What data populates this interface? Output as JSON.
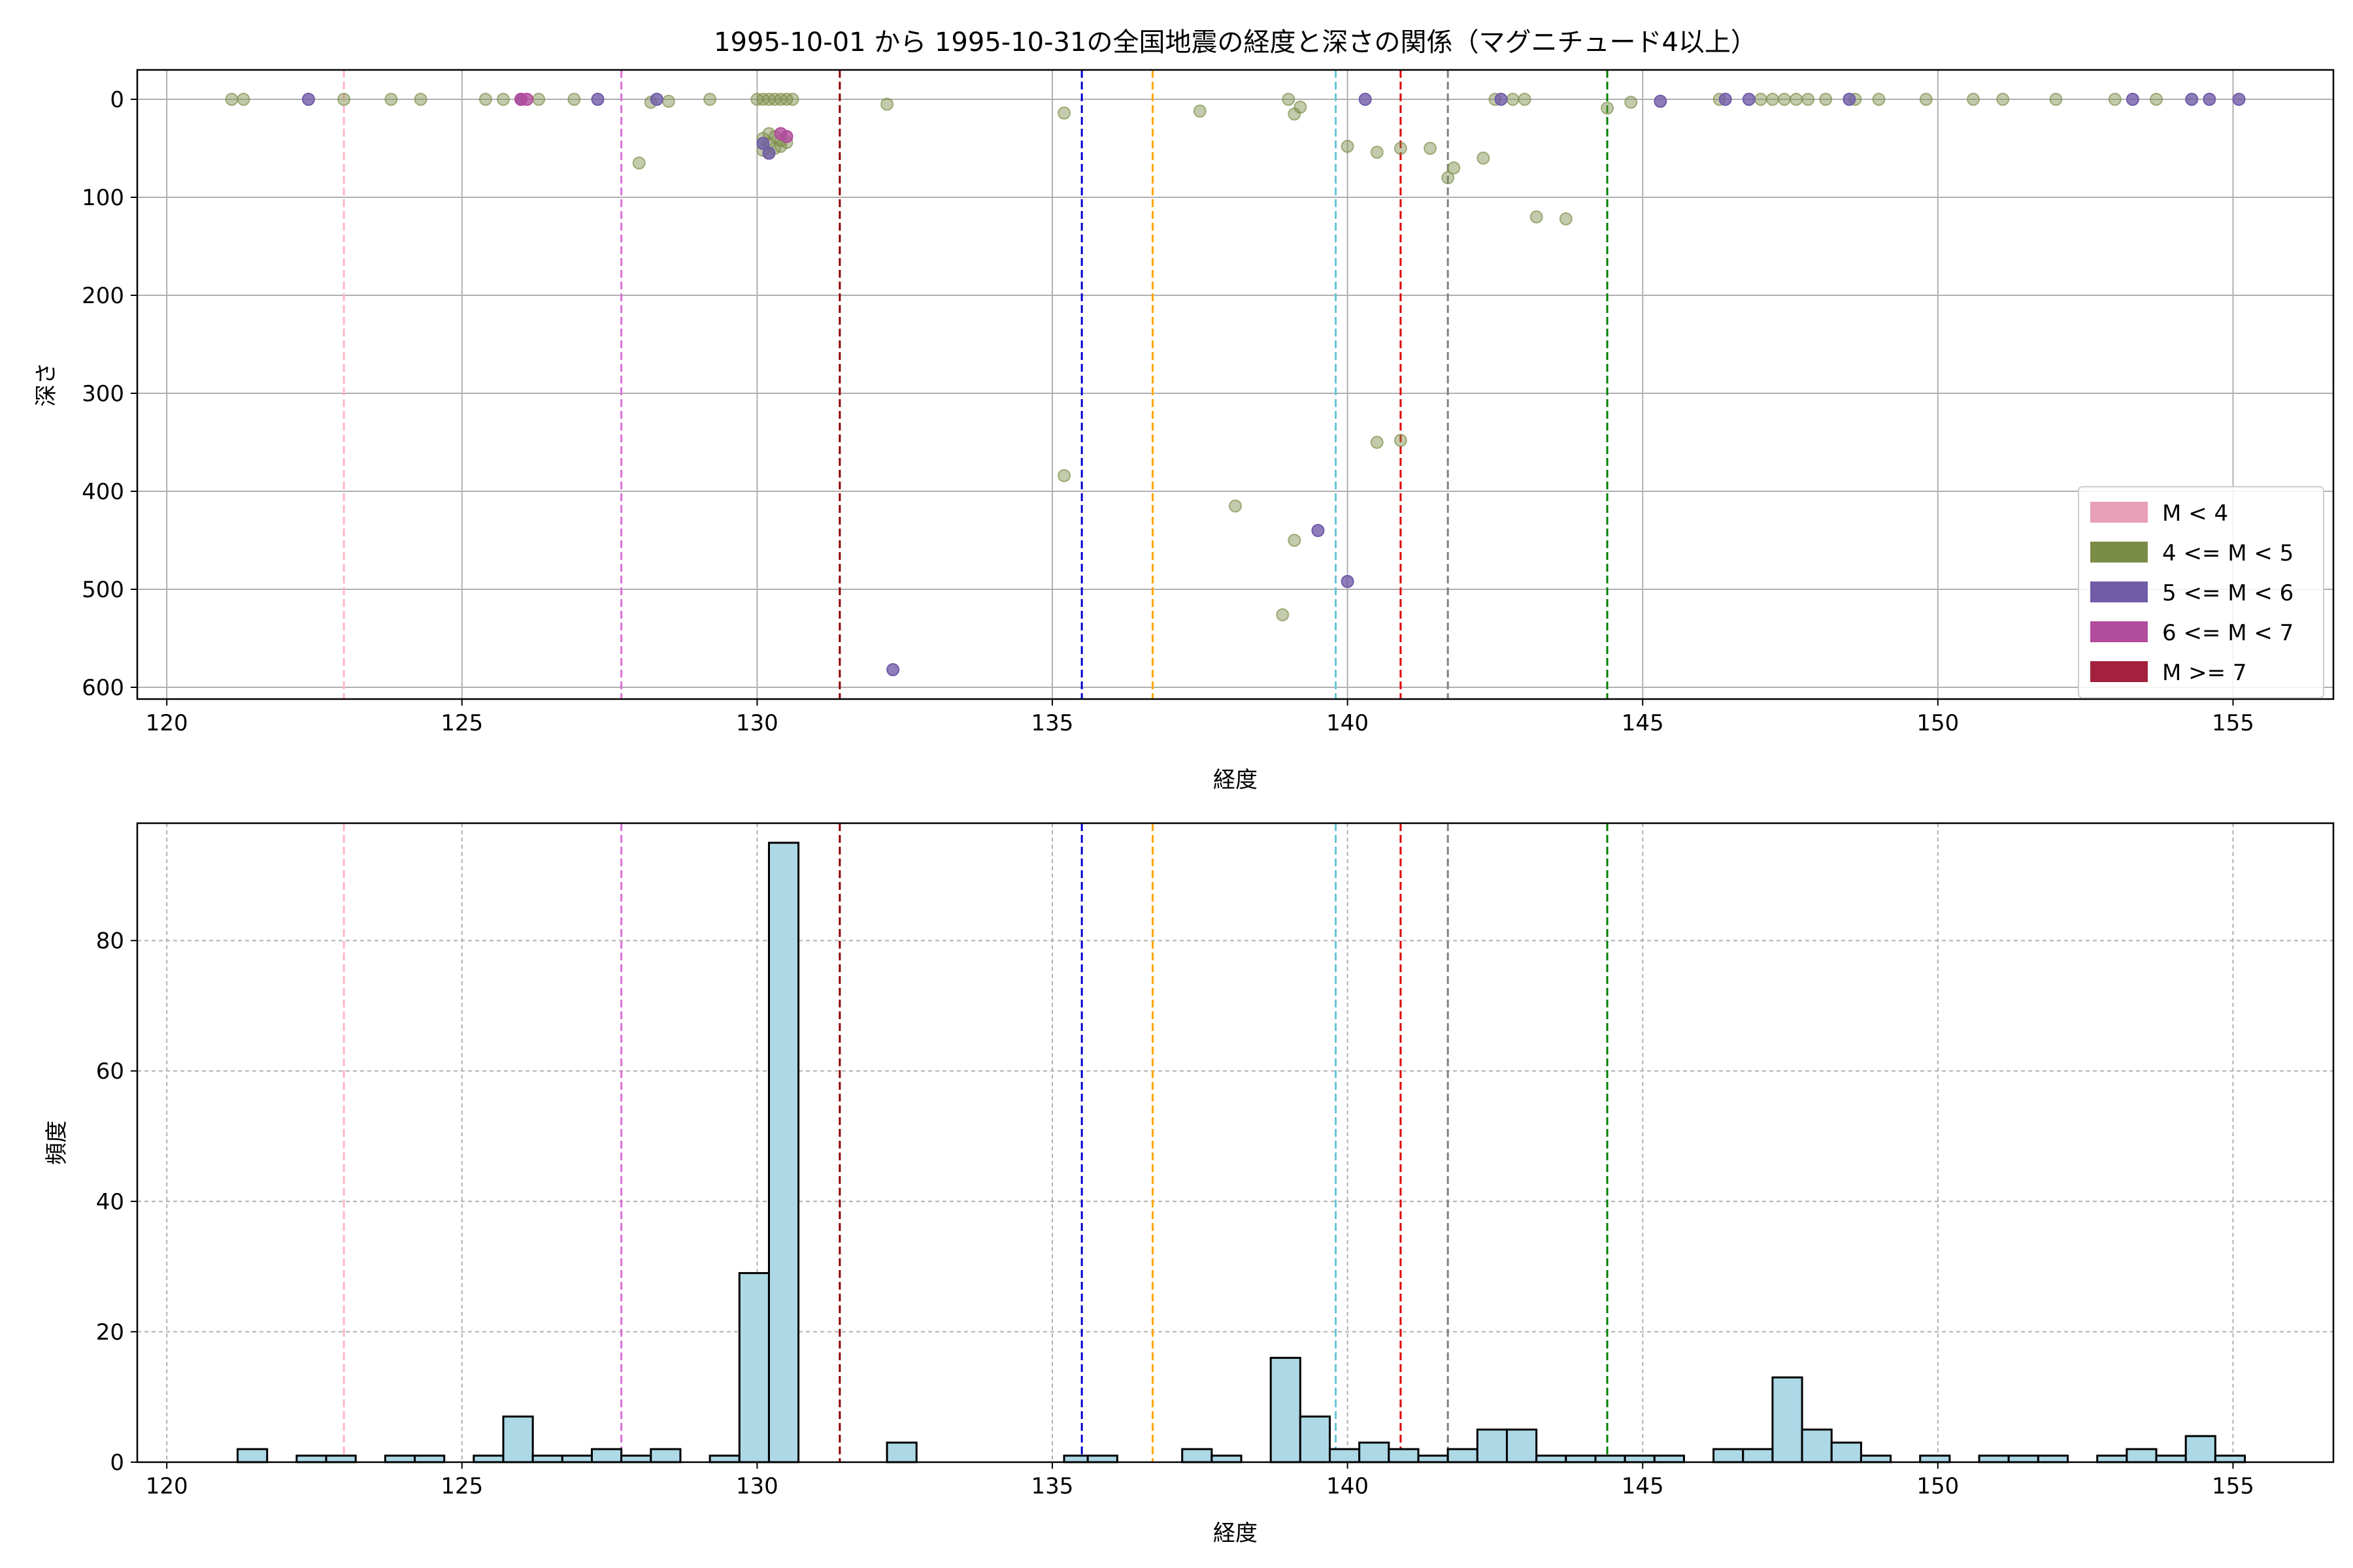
{
  "chart_data": [
    {
      "type": "scatter",
      "title": "1995-10-01 から 1995-10-31の全国地震の経度と深さの関係（マグニチュード4以上）",
      "xlabel": "経度",
      "ylabel": "深さ",
      "xlim": [
        119.5,
        156.7
      ],
      "ylim": [
        612,
        -30
      ],
      "y_inverted": true,
      "x_ticks": [
        120,
        125,
        130,
        135,
        140,
        145,
        150,
        155
      ],
      "y_ticks": [
        0,
        100,
        200,
        300,
        400,
        500,
        600
      ],
      "grid": true,
      "legend_position": "lower-right",
      "legend": [
        {
          "label": "M < 4",
          "color": "#e8a0b8"
        },
        {
          "label": "4 <= M < 5",
          "color": "#7b8c46"
        },
        {
          "label": "5 <= M < 6",
          "color": "#715ca8"
        },
        {
          "label": "6 <= M < 7",
          "color": "#b24c9c"
        },
        {
          "label": "M >= 7",
          "color": "#a3213d"
        }
      ],
      "reference_lines": [
        {
          "x": 123.0,
          "color": "#ffb6c1"
        },
        {
          "x": 127.7,
          "color": "#da70d6"
        },
        {
          "x": 131.4,
          "color": "#8b0000"
        },
        {
          "x": 135.5,
          "color": "#0000cd"
        },
        {
          "x": 136.7,
          "color": "#ffa500"
        },
        {
          "x": 139.8,
          "color": "#66c6d6"
        },
        {
          "x": 140.9,
          "color": "#dd0000"
        },
        {
          "x": 141.7,
          "color": "#808080"
        },
        {
          "x": 144.4,
          "color": "#007f00"
        }
      ],
      "series": [
        {
          "category": "4 <= M < 5",
          "color": "#7b8c46",
          "points": [
            [
              121.1,
              0
            ],
            [
              121.3,
              0
            ],
            [
              123.0,
              0
            ],
            [
              123.8,
              0
            ],
            [
              124.3,
              0
            ],
            [
              125.4,
              0
            ],
            [
              125.7,
              0
            ],
            [
              126.3,
              0
            ],
            [
              126.9,
              0
            ],
            [
              128.2,
              3
            ],
            [
              128.5,
              2
            ],
            [
              128.0,
              65
            ],
            [
              129.2,
              0
            ],
            [
              130.0,
              0
            ],
            [
              130.1,
              0
            ],
            [
              130.2,
              0
            ],
            [
              130.3,
              0
            ],
            [
              130.4,
              0
            ],
            [
              130.5,
              0
            ],
            [
              130.6,
              0
            ],
            [
              130.1,
              40
            ],
            [
              130.2,
              45
            ],
            [
              130.3,
              50
            ],
            [
              130.4,
              42
            ],
            [
              130.2,
              55
            ],
            [
              130.3,
              38
            ],
            [
              130.5,
              44
            ],
            [
              130.1,
              52
            ],
            [
              130.4,
              48
            ],
            [
              130.2,
              35
            ],
            [
              132.2,
              5
            ],
            [
              135.2,
              14
            ],
            [
              135.2,
              384
            ],
            [
              137.5,
              12
            ],
            [
              138.1,
              415
            ],
            [
              138.9,
              526
            ],
            [
              139.0,
              0
            ],
            [
              139.1,
              15
            ],
            [
              139.2,
              8
            ],
            [
              139.1,
              450
            ],
            [
              140.0,
              48
            ],
            [
              140.5,
              54
            ],
            [
              140.9,
              50
            ],
            [
              141.4,
              50
            ],
            [
              141.7,
              80
            ],
            [
              141.8,
              70
            ],
            [
              142.3,
              60
            ],
            [
              142.5,
              0
            ],
            [
              142.8,
              0
            ],
            [
              143.0,
              0
            ],
            [
              143.2,
              120
            ],
            [
              143.7,
              122
            ],
            [
              144.4,
              9
            ],
            [
              144.8,
              3
            ],
            [
              140.5,
              350
            ],
            [
              140.9,
              348
            ],
            [
              146.3,
              0
            ],
            [
              147.0,
              0
            ],
            [
              147.2,
              0
            ],
            [
              147.4,
              0
            ],
            [
              147.6,
              0
            ],
            [
              147.8,
              0
            ],
            [
              148.1,
              0
            ],
            [
              148.6,
              0
            ],
            [
              149.0,
              0
            ],
            [
              149.8,
              0
            ],
            [
              150.6,
              0
            ],
            [
              151.1,
              0
            ],
            [
              152.0,
              0
            ],
            [
              153.0,
              0
            ],
            [
              153.7,
              0
            ]
          ]
        },
        {
          "category": "5 <= M < 6",
          "color": "#715ca8",
          "points": [
            [
              122.4,
              0
            ],
            [
              126.0,
              0
            ],
            [
              127.3,
              0
            ],
            [
              128.3,
              0
            ],
            [
              130.1,
              45
            ],
            [
              130.2,
              55
            ],
            [
              132.3,
              582
            ],
            [
              139.5,
              440
            ],
            [
              140.0,
              492
            ],
            [
              140.3,
              0
            ],
            [
              142.6,
              0
            ],
            [
              145.3,
              2
            ],
            [
              146.4,
              0
            ],
            [
              146.8,
              0
            ],
            [
              148.5,
              0
            ],
            [
              153.3,
              0
            ],
            [
              154.3,
              0
            ],
            [
              154.6,
              0
            ],
            [
              155.1,
              0
            ]
          ]
        },
        {
          "category": "6 <= M < 7",
          "color": "#b24c9c",
          "points": [
            [
              126.0,
              0
            ],
            [
              126.1,
              0
            ],
            [
              130.4,
              35
            ],
            [
              130.5,
              38
            ]
          ]
        }
      ]
    },
    {
      "type": "bar",
      "histogram": true,
      "xlabel": "経度",
      "ylabel": "頻度",
      "xlim": [
        119.5,
        156.7
      ],
      "ylim": [
        0,
        98
      ],
      "x_ticks": [
        120,
        125,
        130,
        135,
        140,
        145,
        150,
        155
      ],
      "y_ticks": [
        0,
        20,
        40,
        60,
        80
      ],
      "grid": "dashed",
      "bar_color": "#add8e6",
      "bin_width": 0.5,
      "bins_start": [
        121.2,
        122.2,
        122.7,
        123.7,
        124.2,
        125.2,
        125.7,
        126.2,
        126.7,
        127.2,
        127.7,
        128.2,
        129.2,
        129.7,
        130.2,
        132.2,
        135.2,
        135.6,
        137.2,
        137.7,
        138.7,
        139.2,
        139.7,
        140.2,
        140.7,
        141.2,
        141.7,
        142.2,
        142.7,
        143.2,
        143.7,
        144.2,
        144.7,
        145.2,
        146.2,
        146.7,
        147.2,
        147.7,
        148.2,
        148.7,
        149.7,
        150.7,
        151.2,
        151.7,
        152.7,
        153.2,
        153.7,
        154.2,
        154.7
      ],
      "values": [
        2,
        1,
        1,
        1,
        1,
        1,
        7,
        1,
        1,
        2,
        1,
        2,
        1,
        29,
        95,
        3,
        1,
        1,
        2,
        1,
        16,
        7,
        2,
        3,
        2,
        1,
        2,
        5,
        5,
        1,
        1,
        1,
        1,
        1,
        2,
        2,
        13,
        5,
        3,
        1,
        1,
        1,
        1,
        1,
        1,
        2,
        1,
        4,
        1
      ],
      "reference_lines": [
        {
          "x": 123.0,
          "color": "#ffb6c1"
        },
        {
          "x": 127.7,
          "color": "#da70d6"
        },
        {
          "x": 131.4,
          "color": "#8b0000"
        },
        {
          "x": 135.5,
          "color": "#0000cd"
        },
        {
          "x": 136.7,
          "color": "#ffa500"
        },
        {
          "x": 139.8,
          "color": "#66c6d6"
        },
        {
          "x": 140.9,
          "color": "#dd0000"
        },
        {
          "x": 141.7,
          "color": "#808080"
        },
        {
          "x": 144.4,
          "color": "#007f00"
        }
      ]
    }
  ]
}
